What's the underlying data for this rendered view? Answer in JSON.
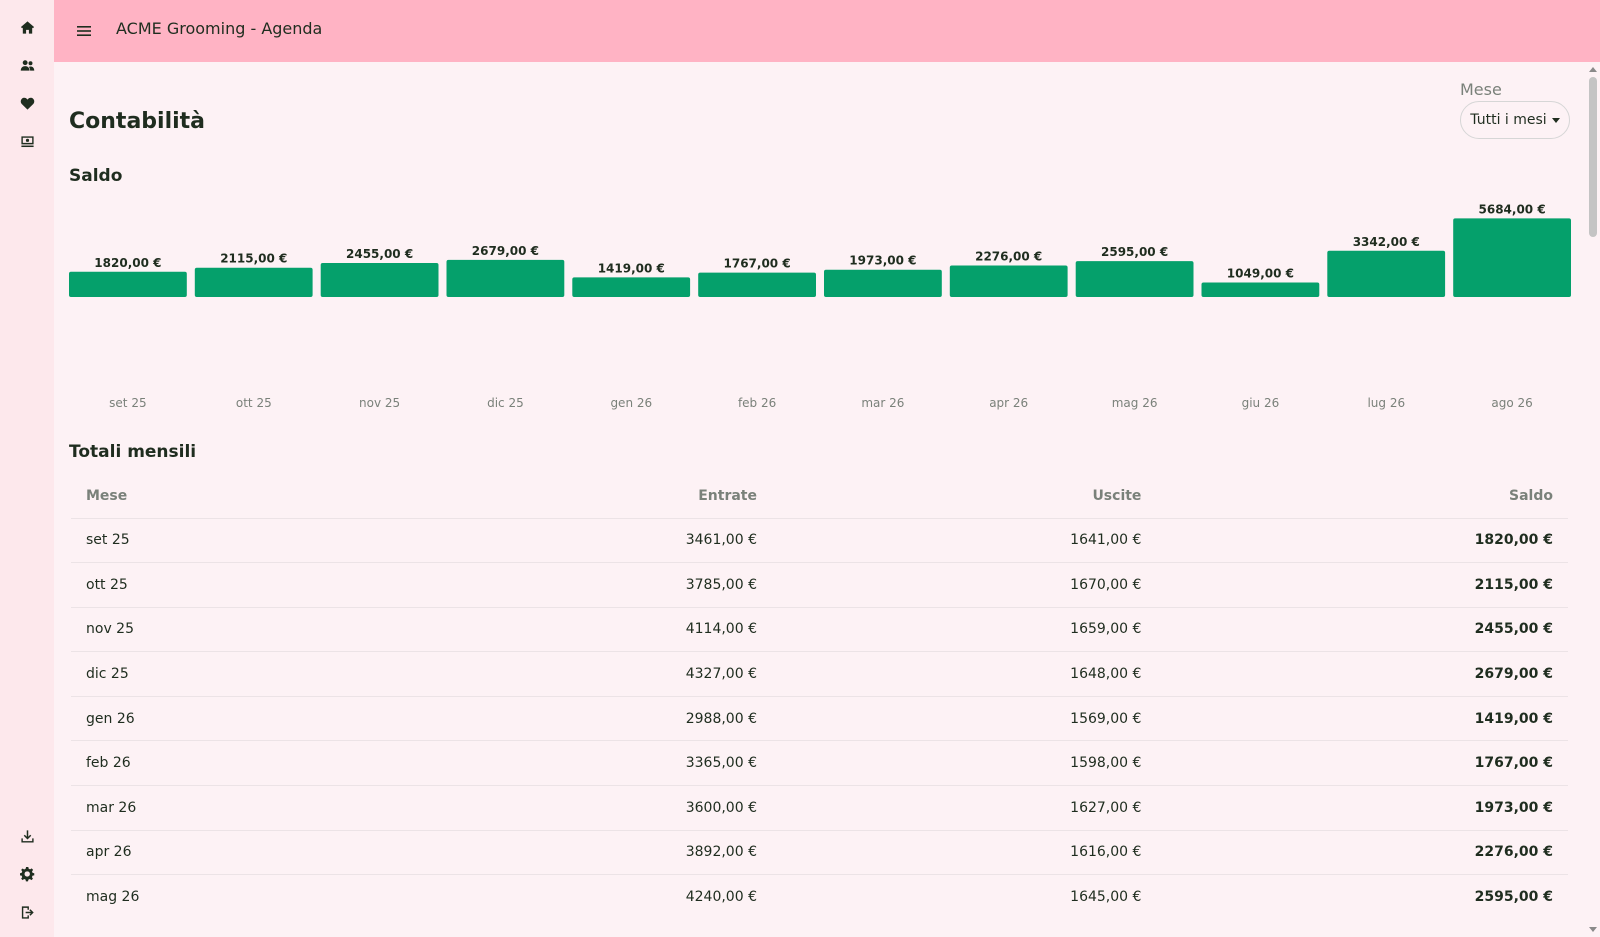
{
  "app": {
    "title": "ACME Grooming - Agenda"
  },
  "sidebar": {
    "top_icons": [
      "home-icon",
      "users-icon",
      "heart-icon",
      "cash-register-icon"
    ],
    "bottom_icons": [
      "download-icon",
      "gear-icon",
      "logout-icon"
    ]
  },
  "page": {
    "title": "Contabilità"
  },
  "filter": {
    "label": "Mese",
    "value": "Tutti i mesi"
  },
  "sections": {
    "balance_title": "Saldo",
    "monthly_title": "Totali mensili"
  },
  "colors": {
    "bar": "#05a06b",
    "topbar": "#ffb3c4",
    "sidebar": "#fde8ec",
    "background": "#fdf2f5"
  },
  "chart_data": {
    "type": "bar",
    "title": "Saldo",
    "categories": [
      "set 25",
      "ott 25",
      "nov 25",
      "dic 25",
      "gen 26",
      "feb 26",
      "mar 26",
      "apr 26",
      "mag 26",
      "giu 26",
      "lug 26",
      "ago 26"
    ],
    "values": [
      1820,
      2115,
      2455,
      2679,
      1419,
      1767,
      1973,
      2276,
      2595,
      1049,
      3342,
      5684
    ],
    "data_labels": [
      "1820,00 €",
      "2115,00 €",
      "2455,00 €",
      "2679,00 €",
      "1419,00 €",
      "1767,00 €",
      "1973,00 €",
      "2276,00 €",
      "2595,00 €",
      "1049,00 €",
      "3342,00 €",
      "5684,00 €"
    ],
    "ylim": [
      -6000,
      6000
    ],
    "grid": false,
    "legend": "none"
  },
  "table": {
    "columns": [
      "Mese",
      "Entrate",
      "Uscite",
      "Saldo"
    ],
    "rows": [
      [
        "set 25",
        "3461,00 €",
        "1641,00 €",
        "1820,00 €"
      ],
      [
        "ott 25",
        "3785,00 €",
        "1670,00 €",
        "2115,00 €"
      ],
      [
        "nov 25",
        "4114,00 €",
        "1659,00 €",
        "2455,00 €"
      ],
      [
        "dic 25",
        "4327,00 €",
        "1648,00 €",
        "2679,00 €"
      ],
      [
        "gen 26",
        "2988,00 €",
        "1569,00 €",
        "1419,00 €"
      ],
      [
        "feb 26",
        "3365,00 €",
        "1598,00 €",
        "1767,00 €"
      ],
      [
        "mar 26",
        "3600,00 €",
        "1627,00 €",
        "1973,00 €"
      ],
      [
        "apr 26",
        "3892,00 €",
        "1616,00 €",
        "2276,00 €"
      ],
      [
        "mag 26",
        "4240,00 €",
        "1645,00 €",
        "2595,00 €"
      ]
    ]
  }
}
